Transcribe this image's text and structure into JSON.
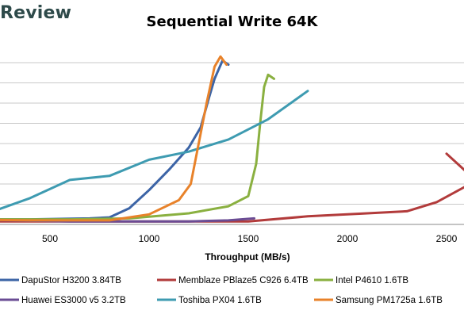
{
  "brand": {
    "text": "Review"
  },
  "chart_data": {
    "type": "line",
    "title": "Sequential Write 64K",
    "xlabel": "Throughput (MB/s)",
    "ylabel": "",
    "xlim": [
      0,
      2600
    ],
    "ylim": [
      0,
      10
    ],
    "x_ticks": [
      "500",
      "1000",
      "1500",
      "2000",
      "2500"
    ],
    "x_tick_values": [
      500,
      1000,
      1500,
      2000,
      2500
    ],
    "y_grid_values": [
      1,
      2,
      3,
      4,
      5,
      6,
      7,
      8
    ],
    "grid": true,
    "legend_position": "bottom",
    "series": [
      {
        "name": "DapuStor H3200 3.84TB",
        "color": "#3c64a6",
        "points": [
          [
            0,
            0.25
          ],
          [
            400,
            0.25
          ],
          [
            700,
            0.3
          ],
          [
            800,
            0.35
          ],
          [
            900,
            0.8
          ],
          [
            1000,
            1.7
          ],
          [
            1100,
            2.7
          ],
          [
            1200,
            3.8
          ],
          [
            1260,
            4.8
          ],
          [
            1300,
            6.2
          ],
          [
            1330,
            7.2
          ],
          [
            1370,
            8.1
          ],
          [
            1400,
            7.9
          ]
        ]
      },
      {
        "name": "Memblaze PBlaze5 C926 6.4TB",
        "color": "#b23b3b",
        "points": [
          [
            0,
            0.15
          ],
          [
            1000,
            0.15
          ],
          [
            1300,
            0.15
          ],
          [
            1500,
            0.15
          ],
          [
            1800,
            0.4
          ],
          [
            2100,
            0.55
          ],
          [
            2300,
            0.65
          ],
          [
            2450,
            1.1
          ],
          [
            2600,
            1.9
          ]
        ]
      },
      {
        "name": "Intel P4610 1.6TB",
        "color": "#8ab040",
        "points": [
          [
            0,
            0.25
          ],
          [
            600,
            0.25
          ],
          [
            900,
            0.3
          ],
          [
            1200,
            0.55
          ],
          [
            1400,
            0.9
          ],
          [
            1500,
            1.4
          ],
          [
            1540,
            3
          ],
          [
            1560,
            5
          ],
          [
            1580,
            6.8
          ],
          [
            1600,
            7.4
          ],
          [
            1630,
            7.2
          ]
        ]
      },
      {
        "name": "Huawei ES3000 v5 3.2TB",
        "color": "#6a4c94",
        "points": [
          [
            0,
            0.25
          ],
          [
            300,
            0.2
          ],
          [
            600,
            0.15
          ],
          [
            900,
            0.15
          ],
          [
            1200,
            0.15
          ],
          [
            1400,
            0.2
          ],
          [
            1530,
            0.3
          ]
        ]
      },
      {
        "name": "Toshiba PX04 1.6TB",
        "color": "#3e9bb1",
        "points": [
          [
            0,
            0.35
          ],
          [
            200,
            0.6
          ],
          [
            400,
            1.3
          ],
          [
            600,
            2.2
          ],
          [
            800,
            2.4
          ],
          [
            1000,
            3.2
          ],
          [
            1200,
            3.6
          ],
          [
            1400,
            4.2
          ],
          [
            1600,
            5.2
          ],
          [
            1800,
            6.6
          ]
        ]
      },
      {
        "name": "Samsung PM1725a 1.6TB",
        "color": "#e8822a",
        "points": [
          [
            0,
            0.25
          ],
          [
            400,
            0.2
          ],
          [
            800,
            0.2
          ],
          [
            1000,
            0.5
          ],
          [
            1150,
            1.2
          ],
          [
            1210,
            2
          ],
          [
            1250,
            4
          ],
          [
            1290,
            6
          ],
          [
            1330,
            7.8
          ],
          [
            1360,
            8.3
          ],
          [
            1390,
            7.9
          ]
        ]
      }
    ],
    "extra_trace": {
      "color": "#b23b3b",
      "points": [
        [
          2500,
          3.5
        ],
        [
          2600,
          2.6
        ]
      ]
    }
  }
}
